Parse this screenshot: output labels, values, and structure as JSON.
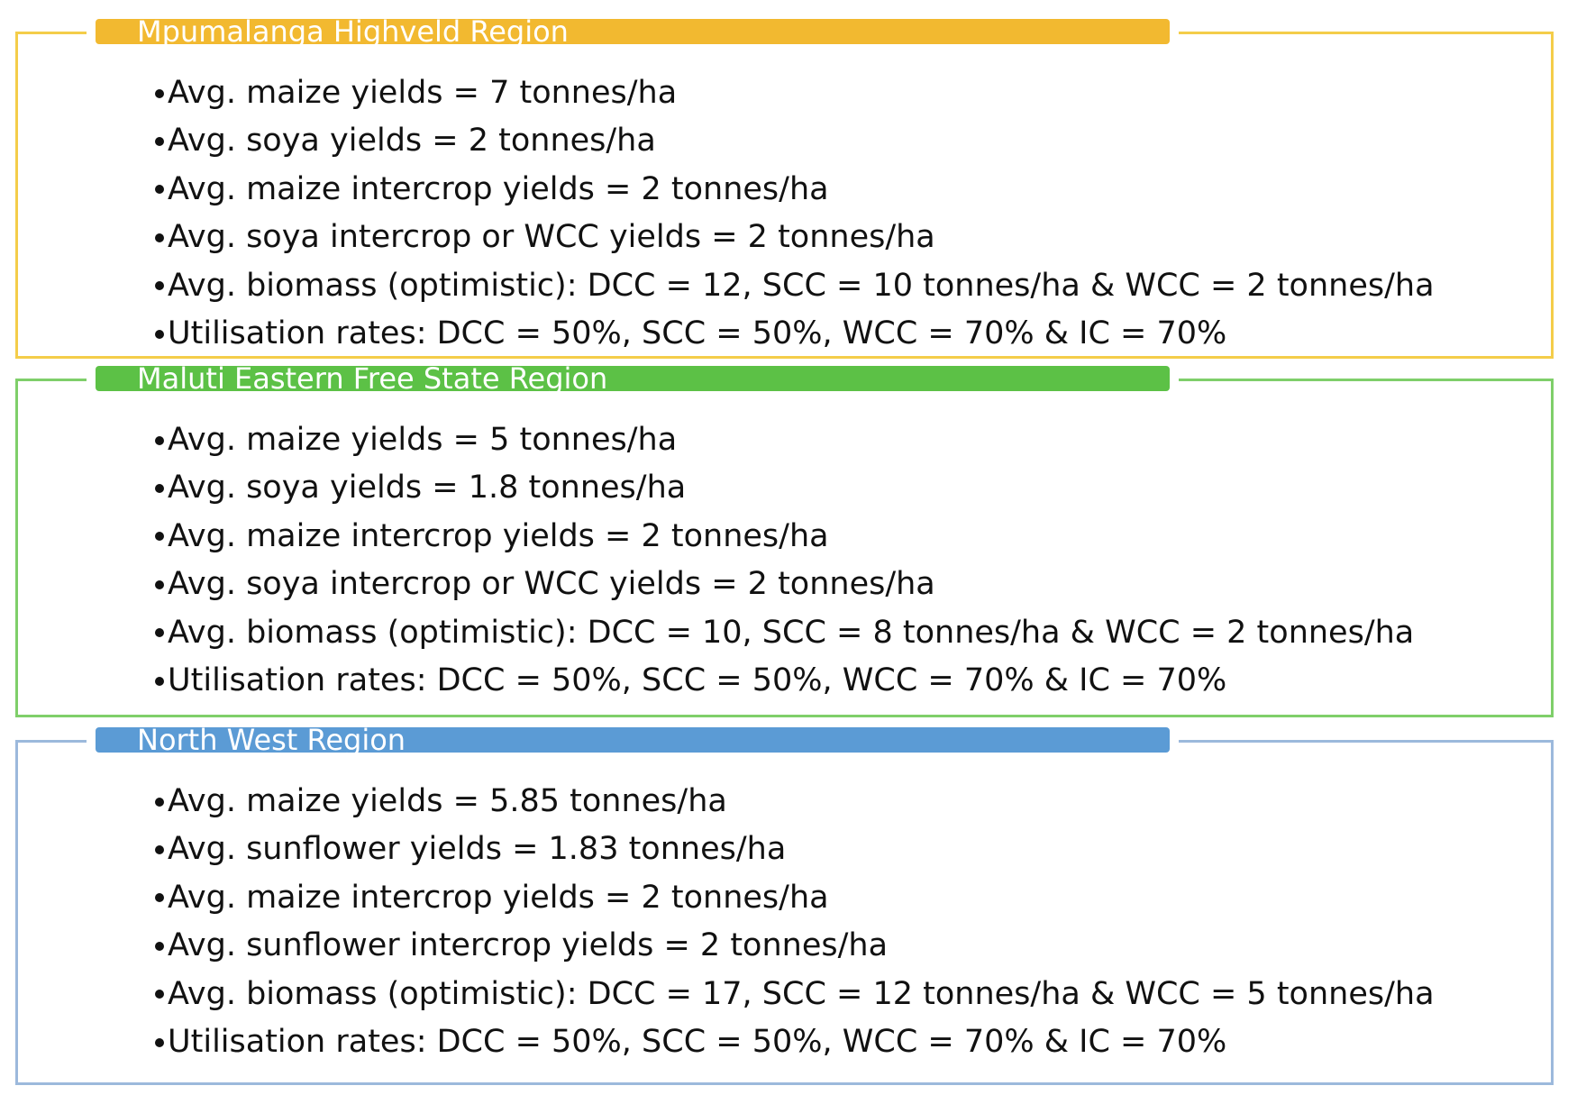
{
  "colors": {
    "mpumalanga": "#f2b930",
    "maluti": "#5cc146",
    "north_west": "#5b9bd5"
  },
  "regions": [
    {
      "title": "Mpumalanga Highveld Region",
      "bullets": [
        "Avg. maize yields = 7 tonnes/ha",
        "Avg. soya yields = 2 tonnes/ha",
        "Avg. maize intercrop yields = 2 tonnes/ha",
        "Avg. soya intercrop or WCC yields = 2 tonnes/ha",
        "Avg. biomass (optimistic): DCC = 12, SCC = 10 tonnes/ha & WCC = 2 tonnes/ha",
        "Utilisation rates: DCC = 50%, SCC = 50%, WCC = 70% & IC = 70%"
      ]
    },
    {
      "title": "Maluti Eastern Free State Region",
      "bullets": [
        "Avg. maize yields = 5 tonnes/ha",
        "Avg. soya yields = 1.8 tonnes/ha",
        "Avg. maize intercrop yields = 2 tonnes/ha",
        "Avg. soya intercrop or WCC yields = 2 tonnes/ha",
        "Avg. biomass (optimistic): DCC = 10, SCC = 8 tonnes/ha & WCC = 2 tonnes/ha",
        "Utilisation rates: DCC = 50%, SCC = 50%, WCC = 70% & IC = 70%"
      ]
    },
    {
      "title": "North West Region",
      "bullets": [
        "Avg. maize yields = 5.85 tonnes/ha",
        "Avg. sunflower yields = 1.83 tonnes/ha",
        "Avg. maize intercrop yields = 2 tonnes/ha",
        "Avg. sunflower intercrop yields = 2 tonnes/ha",
        "Avg. biomass (optimistic): DCC = 17, SCC = 12 tonnes/ha & WCC = 5 tonnes/ha",
        "Utilisation rates: DCC = 50%, SCC = 50%, WCC = 70% & IC = 70%"
      ]
    }
  ]
}
